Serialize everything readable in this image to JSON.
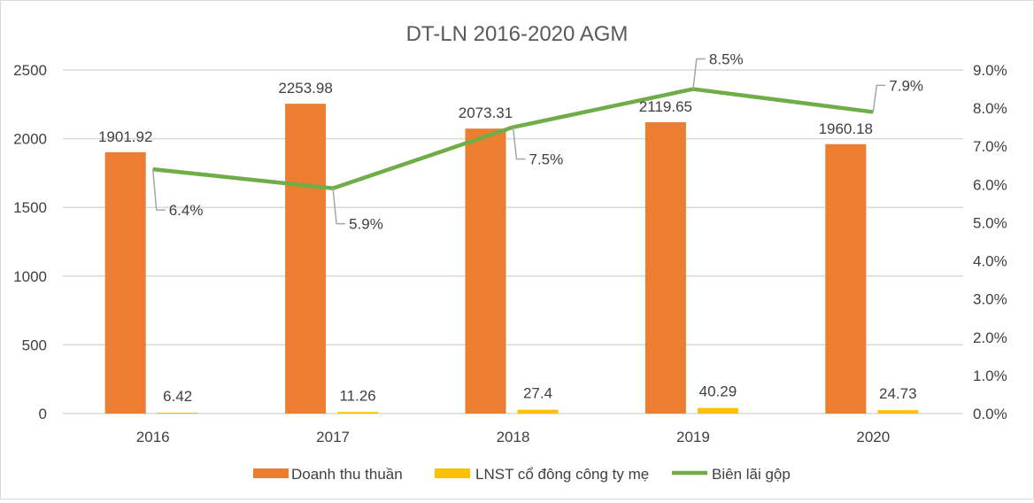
{
  "chart_data": {
    "type": "bar+line",
    "title": "DT-LN 2016-2020 AGM",
    "categories": [
      "2016",
      "2017",
      "2018",
      "2019",
      "2020"
    ],
    "series": [
      {
        "name": "Doanh thu thuần",
        "type": "bar",
        "axis": "left",
        "color": "#ED7D31",
        "values": [
          1901.92,
          2253.98,
          2073.31,
          2119.65,
          1960.18
        ],
        "labels": [
          "1901.92",
          "2253.98",
          "2073.31",
          "2119.65",
          "1960.18"
        ]
      },
      {
        "name": "LNST cổ đông công ty mẹ",
        "type": "bar",
        "axis": "left",
        "color": "#FFC000",
        "values": [
          6.42,
          11.26,
          27.4,
          40.29,
          24.73
        ],
        "labels": [
          "6.42",
          "11.26",
          "27.4",
          "40.29",
          "24.73"
        ]
      },
      {
        "name": "Biên lãi gộp",
        "type": "line",
        "axis": "right",
        "color": "#70AD47",
        "values": [
          6.4,
          5.9,
          7.5,
          8.5,
          7.9
        ],
        "labels": [
          "6.4%",
          "5.9%",
          "7.5%",
          "8.5%",
          "7.9%"
        ]
      }
    ],
    "left_axis": {
      "ylim": [
        0,
        2500
      ],
      "ticks": [
        "0",
        "500",
        "1000",
        "1500",
        "2000",
        "2500"
      ]
    },
    "right_axis": {
      "ylim": [
        0,
        9
      ],
      "ticks": [
        "0.0%",
        "1.0%",
        "2.0%",
        "3.0%",
        "4.0%",
        "5.0%",
        "6.0%",
        "7.0%",
        "8.0%",
        "9.0%"
      ]
    },
    "grid": true,
    "legend": "bottom"
  }
}
